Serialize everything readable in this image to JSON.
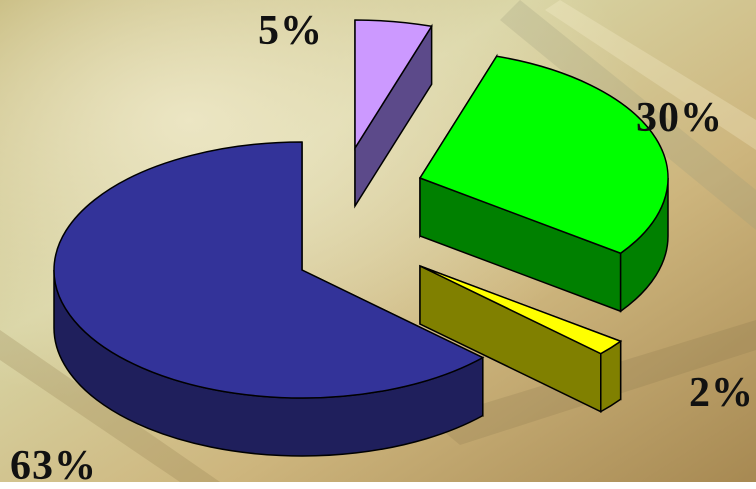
{
  "chart_data": {
    "type": "pie",
    "style": "3d-exploded",
    "slices": [
      {
        "label": "63%",
        "value": 63,
        "color": "#333399",
        "side_color": "#1f1f5c"
      },
      {
        "label": "5%",
        "value": 5,
        "color": "#cc99ff",
        "side_color": "#5c4a8a"
      },
      {
        "label": "30%",
        "value": 30,
        "color": "#00ff00",
        "side_color": "#008000"
      },
      {
        "label": "2%",
        "value": 2,
        "color": "#ffff00",
        "side_color": "#808000"
      }
    ],
    "legend": "none",
    "grid": false
  }
}
